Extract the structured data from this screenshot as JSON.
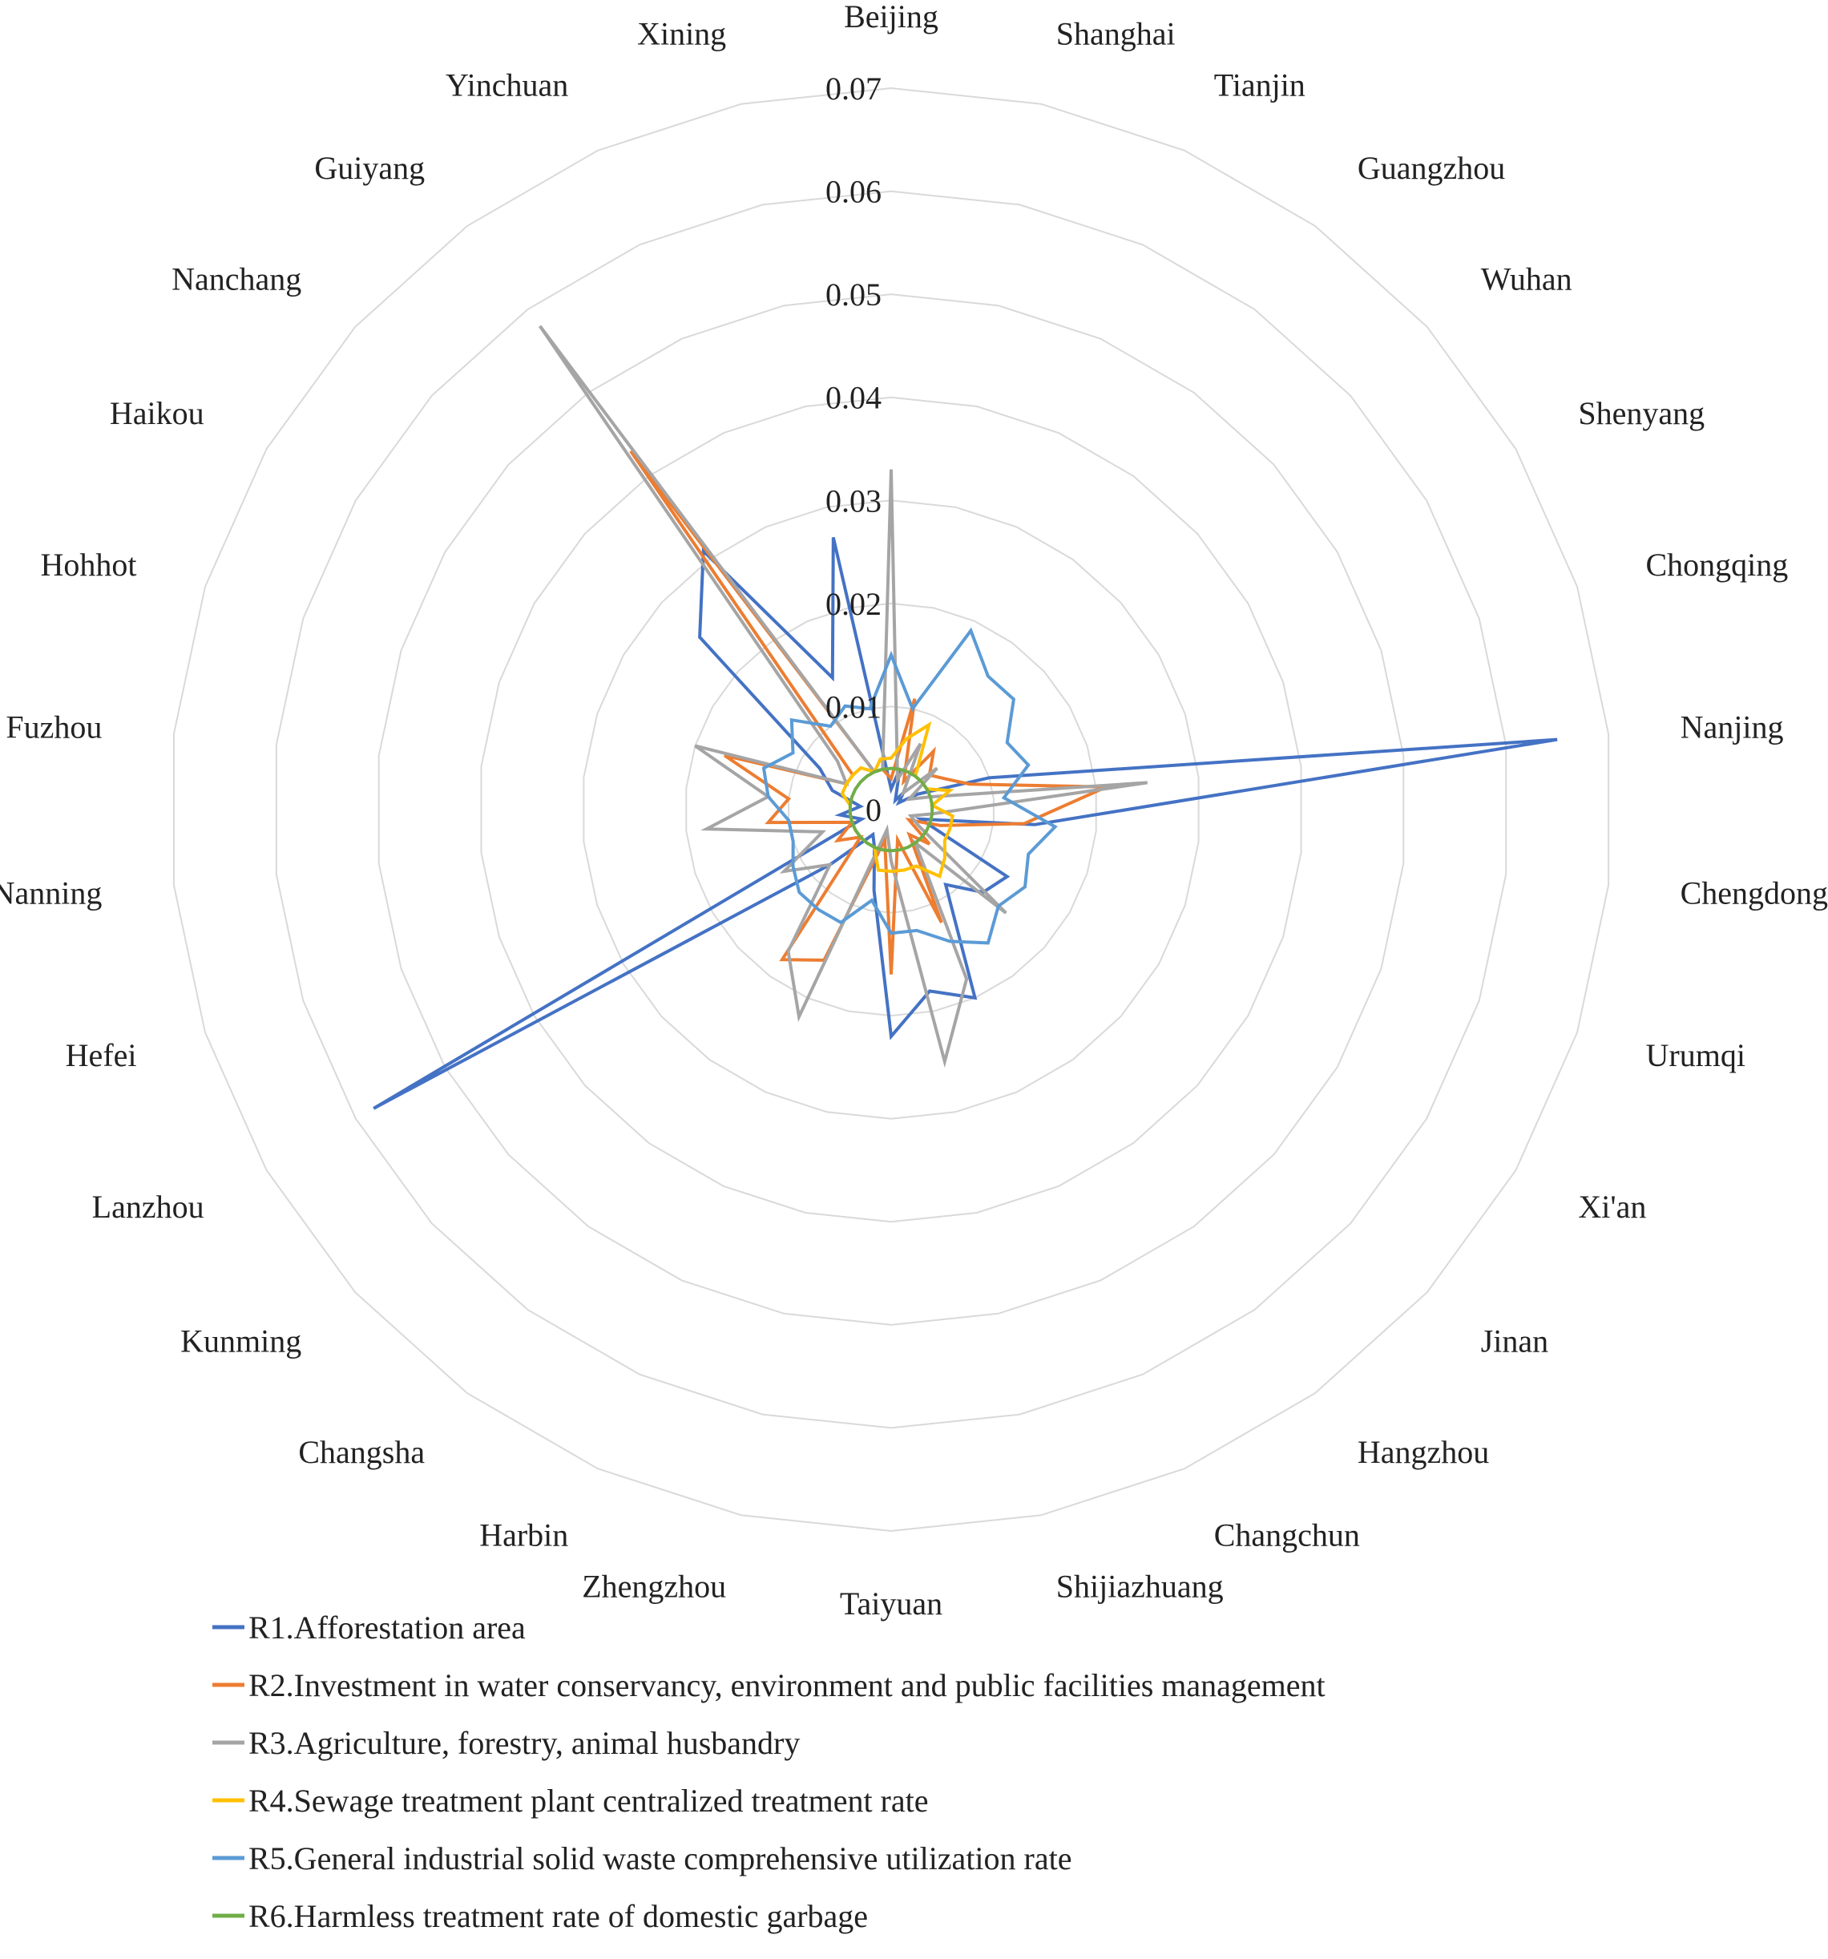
{
  "chart_data": {
    "type": "radar",
    "title": "",
    "rlim": [
      0,
      0.07
    ],
    "ticks": [
      "0",
      "0.01",
      "0.02",
      "0.03",
      "0.04",
      "0.05",
      "0.06",
      "0.07"
    ],
    "tick_values": [
      0,
      0.01,
      0.02,
      0.03,
      0.04,
      0.05,
      0.06,
      0.07
    ],
    "grid": true,
    "legend_position": "bottom",
    "categories": [
      "Beijing",
      "Shanghai",
      "Tianjin",
      "Guangzhou",
      "Wuhan",
      "Shenyang",
      "Chongqing",
      "Nanjing",
      "Chengdong",
      "Urumqi",
      "Xi'an",
      "Jinan",
      "Hangzhou",
      "Changchun",
      "Shijiazhuang",
      "Taiyuan",
      "Zhengzhou",
      "Harbin",
      "Changsha",
      "Kunming",
      "Lanzhou",
      "Hefei",
      "Nanning",
      "Fuzhou",
      "Hohhot",
      "Haikou",
      "Nanchang",
      "Guiyang",
      "Yinchuan",
      "Xining"
    ],
    "series": [
      {
        "name": "R1.Afforestation area",
        "color": "#4472C4",
        "values": [
          0.002,
          0.004,
          0.001,
          0.002,
          0.001,
          0.003,
          0.01,
          0.065,
          0.014,
          0.003,
          0.013,
          0.012,
          0.009,
          0.02,
          0.018,
          0.022,
          0.008,
          0.004,
          0.003,
          0.008,
          0.058,
          0.003,
          0.005,
          0.003,
          0.006,
          0.008,
          0.025,
          0.031,
          0.014,
          0.027
        ]
      },
      {
        "name": "R2.Investment in water conservancy, environment and public facilities management",
        "color": "#ED7D31",
        "values": [
          0.003,
          0.011,
          0.003,
          0.007,
          0.005,
          0.006,
          0.008,
          0.021,
          0.013,
          0.005,
          0.002,
          0.005,
          0.003,
          0.012,
          0.003,
          0.016,
          0.003,
          0.016,
          0.018,
          0.004,
          0.006,
          0.004,
          0.012,
          0.01,
          0.017,
          0.005,
          0.005,
          0.043,
          0.004,
          0.004
        ]
      },
      {
        "name": "R3.Agriculture, forestry, animal husbandry",
        "color": "#A5A5A5",
        "values": [
          0.033,
          0.003,
          0.007,
          0.002,
          0.006,
          0.002,
          0.004,
          0.025,
          0.004,
          0.002,
          0.003,
          0.015,
          0.004,
          0.018,
          0.025,
          0.005,
          0.002,
          0.022,
          0.017,
          0.008,
          0.012,
          0.007,
          0.018,
          0.012,
          0.02,
          0.005,
          0.007,
          0.058,
          0.004,
          0.004
        ]
      },
      {
        "name": "R4.Sewage treatment plant centralized treatment rate",
        "color": "#FFC000",
        "values": [
          0.005,
          0.007,
          0.009,
          0.004,
          0.004,
          0.004,
          0.006,
          0.004,
          0.006,
          0.006,
          0.006,
          0.007,
          0.008,
          0.006,
          0.006,
          0.006,
          0.006,
          0.004,
          0.004,
          0.004,
          0.004,
          0.004,
          0.004,
          0.004,
          0.005,
          0.005,
          0.005,
          0.005,
          0.004,
          0.005
        ]
      },
      {
        "name": "R5.General industrial solid waste comprehensive utilization rate",
        "color": "#5B9BD5",
        "values": [
          0.015,
          0.01,
          0.019,
          0.016,
          0.016,
          0.013,
          0.014,
          0.011,
          0.016,
          0.014,
          0.015,
          0.014,
          0.016,
          0.014,
          0.012,
          0.012,
          0.009,
          0.012,
          0.012,
          0.012,
          0.011,
          0.01,
          0.01,
          0.012,
          0.013,
          0.011,
          0.013,
          0.01,
          0.011,
          0.01
        ]
      },
      {
        "name": "R6.Harmless treatment rate of domestic garbage",
        "color": "#70AD47",
        "values": [
          0.004,
          0.004,
          0.004,
          0.004,
          0.004,
          0.004,
          0.004,
          0.004,
          0.004,
          0.004,
          0.004,
          0.004,
          0.004,
          0.004,
          0.004,
          0.004,
          0.004,
          0.004,
          0.004,
          0.004,
          0.004,
          0.004,
          0.004,
          0.004,
          0.004,
          0.004,
          0.004,
          0.004,
          0.004,
          0.004
        ]
      }
    ]
  }
}
